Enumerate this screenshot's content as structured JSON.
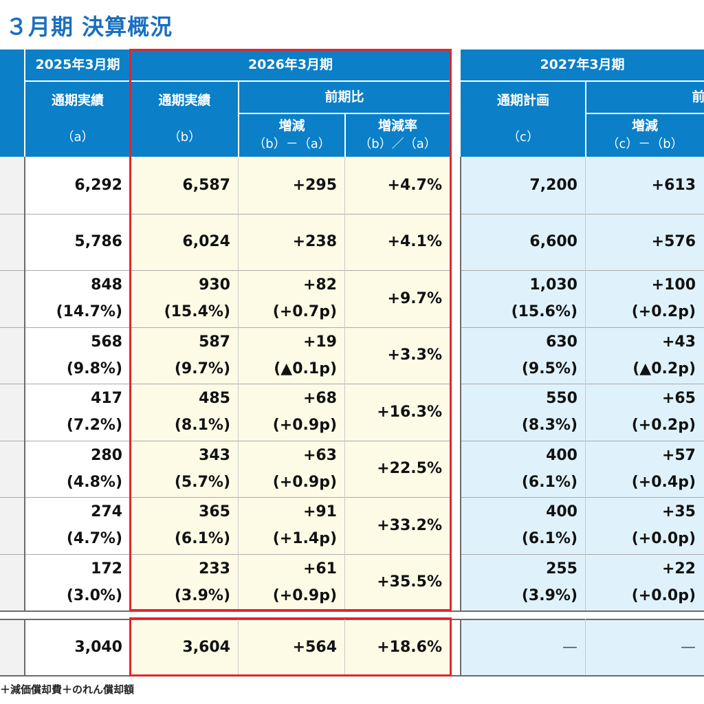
{
  "title": "３月期 決算概況",
  "header": {
    "fy2025": "2025年3月期",
    "fy2026": "2026年3月期",
    "fy2027": "2027年3月期",
    "actual_a_label": "通期実績",
    "actual_a_sub": "（a）",
    "actual_b_label": "通期実績",
    "actual_b_sub": "（b）",
    "yoy": "前期比",
    "change_label": "増減",
    "change_sub": "（b）－（a）",
    "rate_label": "増減率",
    "rate_sub": "（b）／（a）",
    "plan_label": "通期計画",
    "plan_sub": "（c）",
    "yoy27_partial": "前",
    "change27_label": "増減",
    "change27_sub": "（c）－（b）"
  },
  "rows": [
    {
      "a": "6,292",
      "b": "6,587",
      "diff": "+295",
      "rate": "+4.7%",
      "c": "7,200",
      "cdiff": "+613"
    },
    {
      "a": "5,786",
      "b": "6,024",
      "diff": "+238",
      "rate": "+4.1%",
      "c": "6,600",
      "cdiff": "+576"
    },
    {
      "a": "848",
      "a2": "(14.7%)",
      "b": "930",
      "b2": "(15.4%)",
      "diff": "+82",
      "diff2": "(+0.7p)",
      "rate": "+9.7%",
      "c": "1,030",
      "c2": "(15.6%)",
      "cdiff": "+100",
      "cdiff2": "(+0.2p)"
    },
    {
      "a": "568",
      "a2": "(9.8%)",
      "b": "587",
      "b2": "(9.7%)",
      "diff": "+19",
      "diff2": "(▲0.1p)",
      "rate": "+3.3%",
      "c": "630",
      "c2": "(9.5%)",
      "cdiff": "+43",
      "cdiff2": "(▲0.2p)"
    },
    {
      "a": "417",
      "a2": "(7.2%)",
      "b": "485",
      "b2": "(8.1%)",
      "diff": "+68",
      "diff2": "(+0.9p)",
      "rate": "+16.3%",
      "c": "550",
      "c2": "(8.3%)",
      "cdiff": "+65",
      "cdiff2": "(+0.2p)"
    },
    {
      "a": "280",
      "a2": "(4.8%)",
      "b": "343",
      "b2": "(5.7%)",
      "diff": "+63",
      "diff2": "(+0.9p)",
      "rate": "+22.5%",
      "c": "400",
      "c2": "(6.1%)",
      "cdiff": "+57",
      "cdiff2": "(+0.4p)"
    },
    {
      "a": "274",
      "a2": "(4.7%)",
      "b": "365",
      "b2": "(6.1%)",
      "diff": "+91",
      "diff2": "(+1.4p)",
      "rate": "+33.2%",
      "c": "400",
      "c2": "(6.1%)",
      "cdiff": "+35",
      "cdiff2": "(+0.0p)"
    },
    {
      "a": "172",
      "a2": "(3.0%)",
      "b": "233",
      "b2": "(3.9%)",
      "diff": "+61",
      "diff2": "(+0.9p)",
      "rate": "+35.5%",
      "c": "255",
      "c2": "(3.9%)",
      "cdiff": "+22",
      "cdiff2": "(+0.0p)"
    }
  ],
  "bottom_row": {
    "a": "3,040",
    "b": "3,604",
    "diff": "+564",
    "rate": "+18.6%",
    "c": "—",
    "cdiff": "—"
  },
  "footnote": "＋減価償却費＋のれん償却額",
  "colors": {
    "header_blue": "#0b7fc7",
    "title_blue": "#1a6fc0",
    "yellow_fill": "#fdfbe6",
    "blue_fill": "#dff2fb",
    "red_box": "#e0262e",
    "left_gray": "#f2f2f2"
  }
}
